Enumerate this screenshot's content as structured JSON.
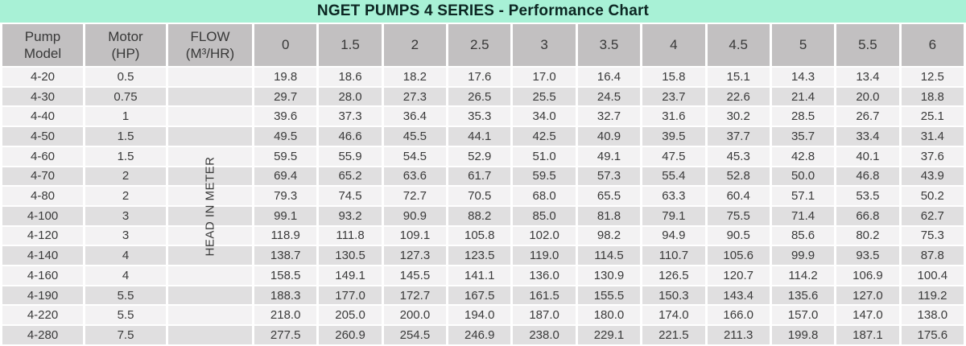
{
  "title": "NGET PUMPS 4 SERIES - Performance Chart",
  "flow_column_note": "HEAD IN METER",
  "colors": {
    "title_bg": "#a8f1d6",
    "title_text": "#0c2622",
    "header_bg": "#c2c0c1",
    "row_light": "#f3f2f3",
    "row_dark": "#e0dfe0",
    "cell_text": "#3a3a3a"
  },
  "chart_data": {
    "type": "table",
    "title": "NGET PUMPS 4 SERIES - Performance Chart",
    "column_header_lines": [
      [
        "Pump",
        "Model"
      ],
      [
        "Motor",
        "(HP)"
      ],
      [
        "FLOW",
        "(M³/HR)"
      ],
      [
        "0"
      ],
      [
        "1.5"
      ],
      [
        "2"
      ],
      [
        "2.5"
      ],
      [
        "3"
      ],
      [
        "3.5"
      ],
      [
        "4"
      ],
      [
        "4.5"
      ],
      [
        "5"
      ],
      [
        "5.5"
      ],
      [
        "6"
      ]
    ],
    "column_keys": [
      "pump-model",
      "motor-hp",
      "flow-unit",
      "flow-0",
      "flow-1-5",
      "flow-2",
      "flow-2-5",
      "flow-3",
      "flow-3-5",
      "flow-4",
      "flow-4-5",
      "flow-5",
      "flow-5-5",
      "flow-6"
    ],
    "flow_values_m3_hr": [
      0,
      1.5,
      2,
      2.5,
      3,
      3.5,
      4,
      4.5,
      5,
      5.5,
      6
    ],
    "head_axis_label": "HEAD IN METER",
    "rows": [
      {
        "model": "4-20",
        "motor_hp": "0.5",
        "head_m": [
          "19.8",
          "18.6",
          "18.2",
          "17.6",
          "17.0",
          "16.4",
          "15.8",
          "15.1",
          "14.3",
          "13.4",
          "12.5"
        ]
      },
      {
        "model": "4-30",
        "motor_hp": "0.75",
        "head_m": [
          "29.7",
          "28.0",
          "27.3",
          "26.5",
          "25.5",
          "24.5",
          "23.7",
          "22.6",
          "21.4",
          "20.0",
          "18.8"
        ]
      },
      {
        "model": "4-40",
        "motor_hp": "1",
        "head_m": [
          "39.6",
          "37.3",
          "36.4",
          "35.3",
          "34.0",
          "32.7",
          "31.6",
          "30.2",
          "28.5",
          "26.7",
          "25.1"
        ]
      },
      {
        "model": "4-50",
        "motor_hp": "1.5",
        "head_m": [
          "49.5",
          "46.6",
          "45.5",
          "44.1",
          "42.5",
          "40.9",
          "39.5",
          "37.7",
          "35.7",
          "33.4",
          "31.4"
        ]
      },
      {
        "model": "4-60",
        "motor_hp": "1.5",
        "head_m": [
          "59.5",
          "55.9",
          "54.5",
          "52.9",
          "51.0",
          "49.1",
          "47.5",
          "45.3",
          "42.8",
          "40.1",
          "37.6"
        ]
      },
      {
        "model": "4-70",
        "motor_hp": "2",
        "head_m": [
          "69.4",
          "65.2",
          "63.6",
          "61.7",
          "59.5",
          "57.3",
          "55.4",
          "52.8",
          "50.0",
          "46.8",
          "43.9"
        ]
      },
      {
        "model": "4-80",
        "motor_hp": "2",
        "head_m": [
          "79.3",
          "74.5",
          "72.7",
          "70.5",
          "68.0",
          "65.5",
          "63.3",
          "60.4",
          "57.1",
          "53.5",
          "50.2"
        ]
      },
      {
        "model": "4-100",
        "motor_hp": "3",
        "head_m": [
          "99.1",
          "93.2",
          "90.9",
          "88.2",
          "85.0",
          "81.8",
          "79.1",
          "75.5",
          "71.4",
          "66.8",
          "62.7"
        ]
      },
      {
        "model": "4-120",
        "motor_hp": "3",
        "head_m": [
          "118.9",
          "111.8",
          "109.1",
          "105.8",
          "102.0",
          "98.2",
          "94.9",
          "90.5",
          "85.6",
          "80.2",
          "75.3"
        ]
      },
      {
        "model": "4-140",
        "motor_hp": "4",
        "head_m": [
          "138.7",
          "130.5",
          "127.3",
          "123.5",
          "119.0",
          "114.5",
          "110.7",
          "105.6",
          "99.9",
          "93.5",
          "87.8"
        ]
      },
      {
        "model": "4-160",
        "motor_hp": "4",
        "head_m": [
          "158.5",
          "149.1",
          "145.5",
          "141.1",
          "136.0",
          "130.9",
          "126.5",
          "120.7",
          "114.2",
          "106.9",
          "100.4"
        ]
      },
      {
        "model": "4-190",
        "motor_hp": "5.5",
        "head_m": [
          "188.3",
          "177.0",
          "172.7",
          "167.5",
          "161.5",
          "155.5",
          "150.3",
          "143.4",
          "135.6",
          "127.0",
          "119.2"
        ]
      },
      {
        "model": "4-220",
        "motor_hp": "5.5",
        "head_m": [
          "218.0",
          "205.0",
          "200.0",
          "194.0",
          "187.0",
          "180.0",
          "174.0",
          "166.0",
          "157.0",
          "147.0",
          "138.0"
        ]
      },
      {
        "model": "4-280",
        "motor_hp": "7.5",
        "head_m": [
          "277.5",
          "260.9",
          "254.5",
          "246.9",
          "238.0",
          "229.1",
          "221.5",
          "211.3",
          "199.8",
          "187.1",
          "175.6"
        ]
      }
    ]
  }
}
